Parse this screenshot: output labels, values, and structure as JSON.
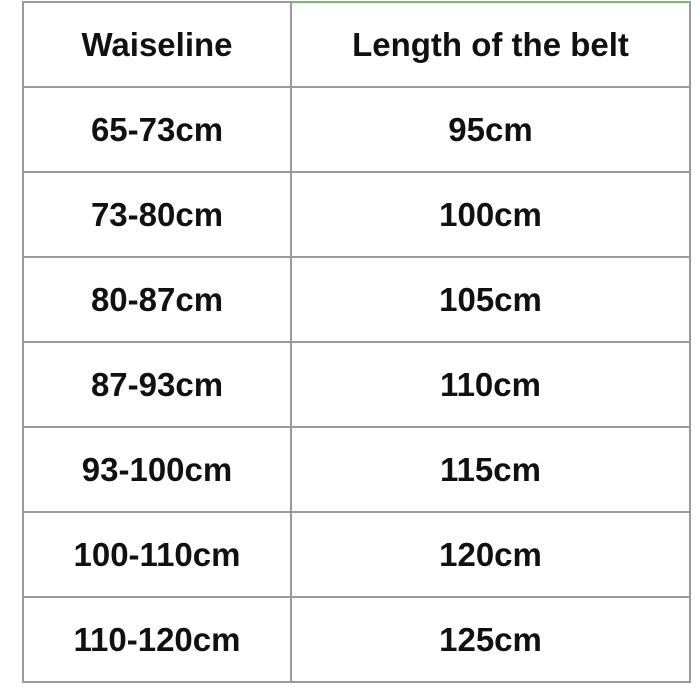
{
  "table": {
    "header": [
      "Waiseline",
      "Length of the belt"
    ],
    "rows": [
      [
        "65-73cm",
        "95cm"
      ],
      [
        "73-80cm",
        "100cm"
      ],
      [
        "80-87cm",
        "105cm"
      ],
      [
        "87-93cm",
        "110cm"
      ],
      [
        "93-100cm",
        "115cm"
      ],
      [
        "100-110cm",
        "120cm"
      ],
      [
        "110-120cm",
        "125cm"
      ]
    ]
  }
}
